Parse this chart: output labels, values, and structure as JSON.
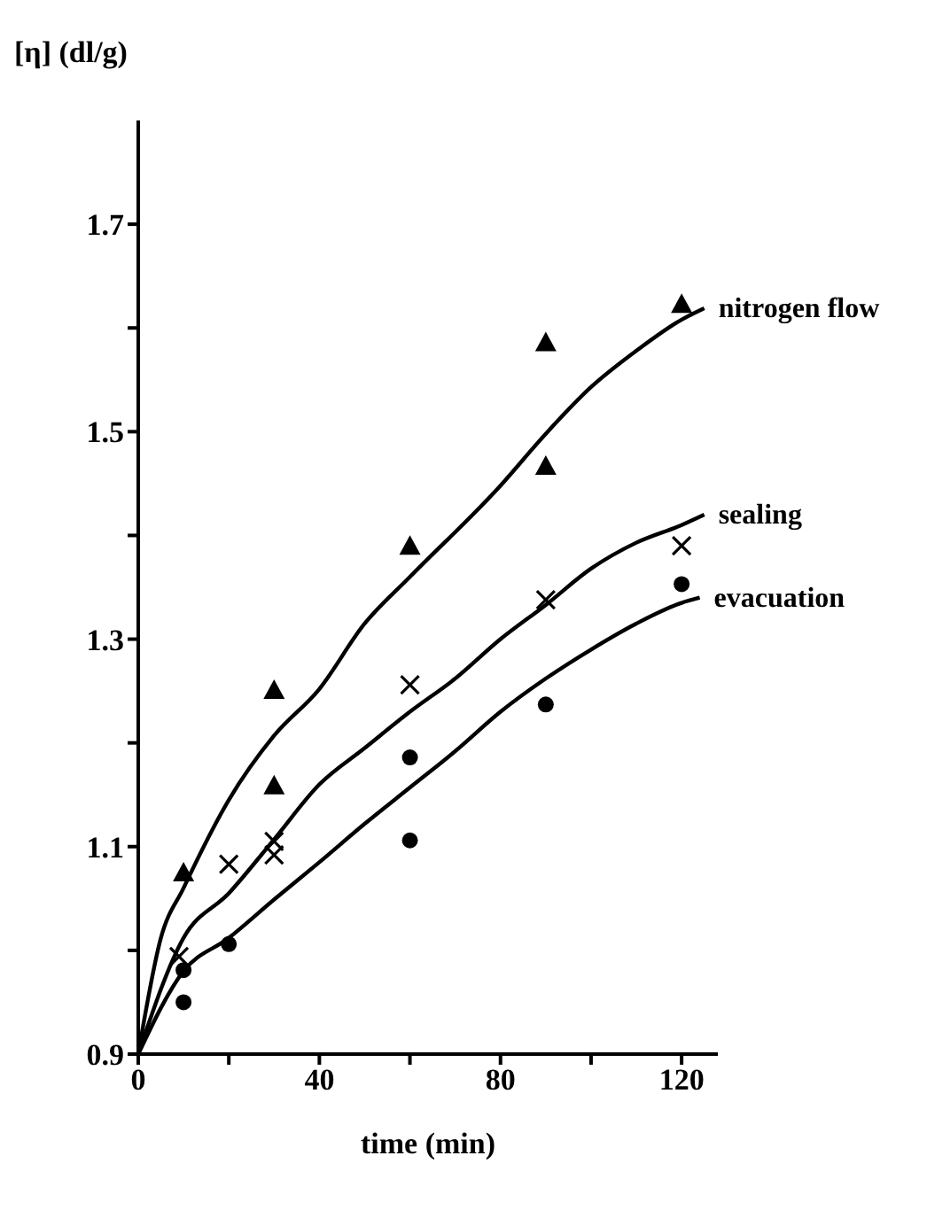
{
  "chart_data": {
    "type": "scatter",
    "xlabel": "time (min)",
    "ylabel": "[η] (dl/g)",
    "xlim": [
      0,
      128
    ],
    "ylim": [
      0.9,
      1.8
    ],
    "xticks": [
      0,
      {
        "value": 20,
        "label": null
      },
      40,
      {
        "value": 60,
        "label": null
      },
      80,
      {
        "value": 100,
        "label": null
      },
      120
    ],
    "yticks": [
      0.9,
      {
        "value": 1.0,
        "label": null
      },
      1.1,
      {
        "value": 1.2,
        "label": null
      },
      1.3,
      {
        "value": 1.4,
        "label": null
      },
      1.5,
      {
        "value": 1.6,
        "label": null
      },
      1.7
    ],
    "series": [
      {
        "name": "nitrogen flow",
        "type": "line",
        "color": "#000000",
        "marker": "none",
        "x": [
          0,
          5,
          10,
          20,
          30,
          40,
          50,
          60,
          80,
          90,
          100,
          110,
          120,
          125
        ],
        "values": [
          0.9,
          1.012,
          1.06,
          1.145,
          1.207,
          1.252,
          1.315,
          1.36,
          1.448,
          1.498,
          1.543,
          1.578,
          1.608,
          1.619
        ]
      },
      {
        "name": "sealing",
        "type": "line",
        "color": "#000000",
        "marker": "none",
        "x": [
          0,
          10,
          20,
          30,
          40,
          50,
          60,
          70,
          80,
          90,
          100,
          110,
          120,
          125
        ],
        "values": [
          0.9,
          1.012,
          1.055,
          1.107,
          1.16,
          1.195,
          1.23,
          1.262,
          1.3,
          1.333,
          1.368,
          1.393,
          1.41,
          1.42
        ]
      },
      {
        "name": "evacuation",
        "type": "line",
        "color": "#000000",
        "marker": "none",
        "x": [
          0,
          10,
          20,
          30,
          40,
          50,
          60,
          70,
          80,
          90,
          100,
          110,
          120,
          124
        ],
        "values": [
          0.9,
          0.98,
          1.012,
          1.049,
          1.085,
          1.122,
          1.157,
          1.192,
          1.23,
          1.262,
          1.29,
          1.315,
          1.335,
          1.34
        ]
      },
      {
        "color": "#000000",
        "marker": "triangle",
        "x": [
          10,
          30,
          30,
          60,
          90,
          90,
          120
        ],
        "values": [
          1.075,
          1.251,
          1.159,
          1.39,
          1.586,
          1.467,
          1.623
        ]
      },
      {
        "color": "#000000",
        "marker": "cross",
        "x": [
          9,
          20,
          30,
          30,
          60,
          90,
          120
        ],
        "values": [
          0.994,
          1.083,
          1.105,
          1.092,
          1.256,
          1.338,
          1.39
        ]
      },
      {
        "color": "#000000",
        "marker": "circle",
        "x": [
          10,
          10,
          20,
          60,
          60,
          90,
          120
        ],
        "values": [
          0.981,
          0.95,
          1.006,
          1.186,
          1.106,
          1.237,
          1.353
        ]
      }
    ]
  }
}
